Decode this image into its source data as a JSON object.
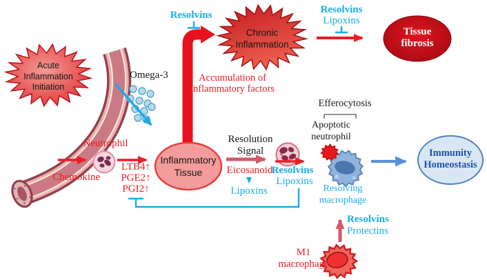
{
  "colors": {
    "cyan_text": "#17ace8",
    "red_text": "#ee1c23",
    "thick_red_arrow": "#e8111e",
    "pink_arrow": "#d3596a",
    "blue_arrow": "#5b8fd4",
    "dark_blue_text": "#1c55a8",
    "inflammatory_tissue_fill": "#f49c9c",
    "immunity_fill": "#d9e6f4",
    "fibrosis_fill": "#c8101c"
  },
  "nodes": {
    "acute_inflammation": {
      "label": "Acute\nInflammation\nInitiation"
    },
    "chronic_inflammation": {
      "label": "Chronic\nInflammation"
    },
    "tissue_fibrosis": {
      "label": "Tissue\nfibrosis"
    },
    "inflammatory_tissue": {
      "label": "Inflammatory\nTissue"
    },
    "immunity_homeostasis": {
      "label": "Immunity\nHomeostasis"
    }
  },
  "labels": {
    "omega3": "Omega-3",
    "resolvins_block_chronic": "Resolvins",
    "accumulation": "Accumulation of\ninflammatory factors",
    "resolvins_block_fibrosis": "Resolvins",
    "lipoxins_block_fibrosis": "Lipoxins",
    "neutrophil": "Neutrophil",
    "chemokine": "Chemokine",
    "mediators": "LTB4↑\nPGE2↑\nPGI2↑",
    "resolution_signal": "Resolution\nSignal",
    "eicosanoid": "Eicosanoid",
    "lipoxins_from_eicosanoid": "Lipoxins",
    "resolvins_mid": "Resolvins",
    "lipoxins_mid": "Lipoxins",
    "efferocytosis": "Efferocytosis",
    "apoptotic_neutrophil": "Apoptotic\nneutrophil",
    "resolving_macrophage": "Resolving\nmacrophage",
    "resolvins_from_m1": "Resolvins",
    "protectins_from_m1": "Protectins",
    "m1_macrophage": "M1\nmacrophage"
  }
}
